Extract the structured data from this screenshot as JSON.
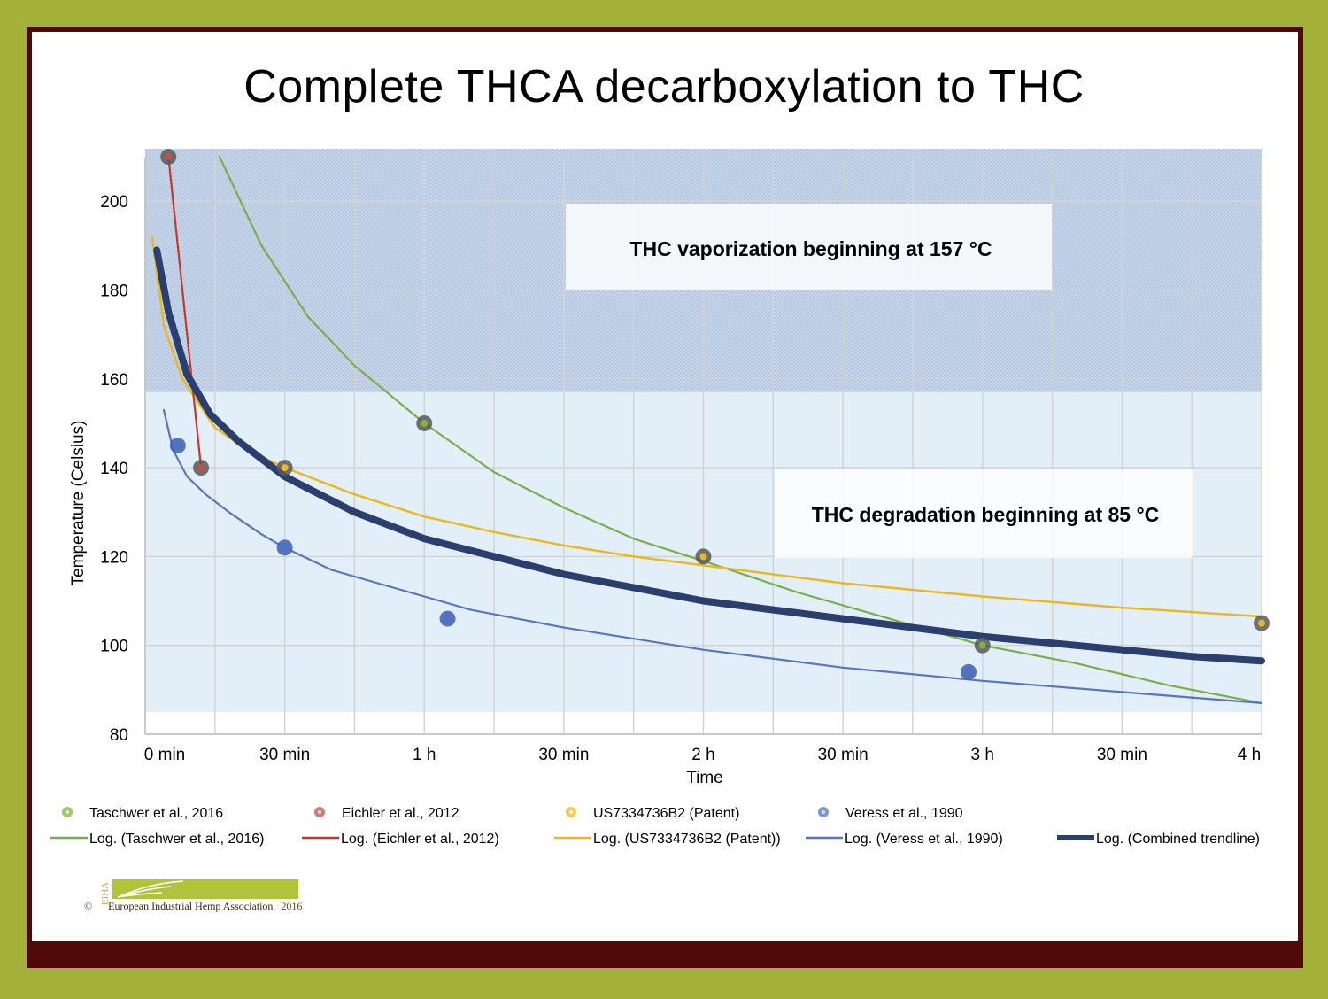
{
  "chart_data": {
    "type": "line",
    "title": "Complete THCA decarboxylation to THC",
    "xlabel": "Time",
    "ylabel": "Temperature (Celsius)",
    "xlim_minutes": [
      0,
      240
    ],
    "ylim": [
      80,
      210
    ],
    "x_ticks": [
      {
        "minutes": 0,
        "label": "0 min"
      },
      {
        "minutes": 30,
        "label": "30 min"
      },
      {
        "minutes": 60,
        "label": "1 h"
      },
      {
        "minutes": 90,
        "label": "30 min"
      },
      {
        "minutes": 120,
        "label": "2 h"
      },
      {
        "minutes": 150,
        "label": "30 min"
      },
      {
        "minutes": 180,
        "label": "3 h"
      },
      {
        "minutes": 210,
        "label": "30 min"
      },
      {
        "minutes": 240,
        "label": "4 h"
      }
    ],
    "y_ticks": [
      80,
      100,
      120,
      140,
      160,
      180,
      200
    ],
    "grid": true,
    "regions": [
      {
        "name": "vaporization",
        "y_from": 157,
        "y_to": 210,
        "label": "THC vaporization beginning at 157 °C",
        "pattern": "dotted"
      },
      {
        "name": "degradation",
        "y_from": 85,
        "y_to": 157,
        "label": "THC degradation beginning at 85 °C",
        "pattern": "solid"
      }
    ],
    "scatter_series": [
      {
        "name": "Taschwer et al., 2016",
        "color": "#7cb342",
        "points": [
          [
            60,
            150
          ],
          [
            180,
            100
          ]
        ]
      },
      {
        "name": "Eichler et al., 2012",
        "color": "#c0504d",
        "points": [
          [
            5,
            210
          ],
          [
            12,
            140
          ]
        ]
      },
      {
        "name": "US7334736B2 (Patent)",
        "color": "#e8b923",
        "points": [
          [
            30,
            140
          ],
          [
            120,
            120
          ],
          [
            240,
            105
          ]
        ]
      },
      {
        "name": "Veress et al., 1990",
        "color": "#4f73c4",
        "points": [
          [
            7,
            145
          ],
          [
            30,
            122
          ],
          [
            65,
            106
          ],
          [
            177,
            94
          ]
        ]
      }
    ],
    "trendline_series": [
      {
        "name": "Log. (Taschwer et al., 2016)",
        "color": "#77b04a",
        "width": 2.2,
        "points": [
          [
            16,
            210
          ],
          [
            25,
            190
          ],
          [
            35,
            174
          ],
          [
            45,
            163
          ],
          [
            60,
            150
          ],
          [
            75,
            139
          ],
          [
            90,
            131
          ],
          [
            105,
            124
          ],
          [
            120,
            119
          ],
          [
            140,
            112
          ],
          [
            160,
            106
          ],
          [
            180,
            100
          ],
          [
            200,
            96
          ],
          [
            220,
            91
          ],
          [
            240,
            87
          ]
        ]
      },
      {
        "name": "Log. (Eichler et al., 2012)",
        "color": "#c0392b",
        "width": 2.2,
        "points": [
          [
            5,
            210
          ],
          [
            12,
            140
          ]
        ]
      },
      {
        "name": "Log. (US7334736B2 (Patent))",
        "color": "#e8b923",
        "width": 2.5,
        "points": [
          [
            1.5,
            192
          ],
          [
            4,
            172
          ],
          [
            8,
            160
          ],
          [
            15,
            149
          ],
          [
            22,
            144
          ],
          [
            30,
            140
          ],
          [
            45,
            134
          ],
          [
            60,
            129
          ],
          [
            75,
            125.5
          ],
          [
            90,
            122.5
          ],
          [
            105,
            120
          ],
          [
            120,
            118
          ],
          [
            150,
            114
          ],
          [
            180,
            111
          ],
          [
            210,
            108.5
          ],
          [
            240,
            106.5
          ]
        ]
      },
      {
        "name": "Log. (Veress et al., 1990)",
        "color": "#5876bf",
        "width": 2.2,
        "points": [
          [
            4,
            153
          ],
          [
            6,
            144
          ],
          [
            9,
            138
          ],
          [
            13,
            134
          ],
          [
            18,
            130
          ],
          [
            25,
            125
          ],
          [
            30,
            122
          ],
          [
            40,
            117
          ],
          [
            50,
            114
          ],
          [
            60,
            111
          ],
          [
            70,
            108
          ],
          [
            90,
            104
          ],
          [
            120,
            99
          ],
          [
            150,
            95
          ],
          [
            180,
            92
          ],
          [
            210,
            89.5
          ],
          [
            240,
            87
          ]
        ]
      },
      {
        "name": "Log. (Combined trendline)",
        "color": "#2a3f6e",
        "width": 8,
        "points": [
          [
            2.5,
            189
          ],
          [
            5,
            175
          ],
          [
            9,
            161
          ],
          [
            14,
            152
          ],
          [
            20,
            146
          ],
          [
            30,
            138
          ],
          [
            45,
            130
          ],
          [
            60,
            124
          ],
          [
            75,
            120
          ],
          [
            90,
            116
          ],
          [
            105,
            113
          ],
          [
            120,
            110
          ],
          [
            135,
            108
          ],
          [
            150,
            106
          ],
          [
            165,
            104
          ],
          [
            180,
            102
          ],
          [
            195,
            100.5
          ],
          [
            210,
            99
          ],
          [
            225,
            97.5
          ],
          [
            240,
            96.5
          ]
        ]
      }
    ],
    "legend": {
      "placement": "bottom",
      "markers": [
        "Taschwer et al., 2016",
        "Eichler et al., 2012",
        "US7334736B2 (Patent)",
        "Veress et al., 1990"
      ],
      "lines": [
        "Log. (Taschwer et al., 2016)",
        "Log. (Eichler et al., 2012)",
        "Log. (US7334736B2 (Patent))",
        "Log. (Veress et al., 1990)",
        "Log. (Combined trendline)"
      ]
    }
  },
  "footer": {
    "copyright_symbol": "©",
    "organization": "European Industrial Hemp Association",
    "year": "2016",
    "logo_acronym": "EIHA"
  },
  "colors": {
    "outer_background": "#a3b13a",
    "frame": "#500909",
    "vaporization_region": "#c7d6ea",
    "degradation_region": "#e3eff8"
  }
}
